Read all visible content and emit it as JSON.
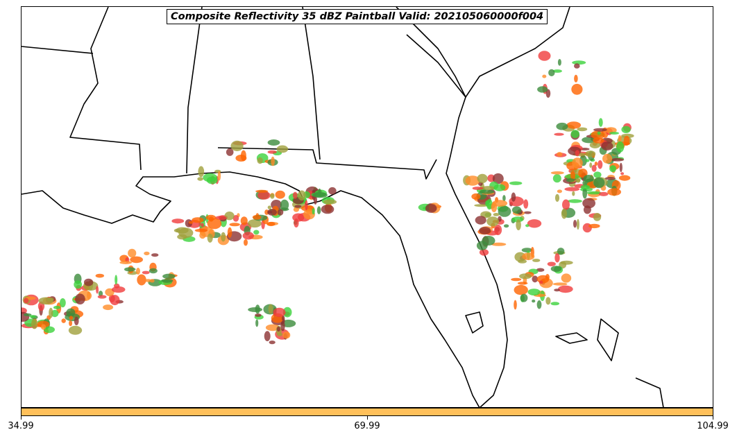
{
  "map": {
    "title": "Composite Reflectivity 35 dBZ Paintball Valid: 202105060000f004",
    "colorbar": {
      "color": "#ffc05a",
      "tick_labels": [
        "34.99",
        "69.99",
        "104.99"
      ]
    },
    "palette": {
      "red": "#f03c3c",
      "dark_red": "#8c3232",
      "orange": "#ff8c28",
      "bright_orange": "#ff6400",
      "olive": "#a0a03c",
      "green": "#3c8c3c",
      "bright_green": "#3cd23c"
    }
  }
}
